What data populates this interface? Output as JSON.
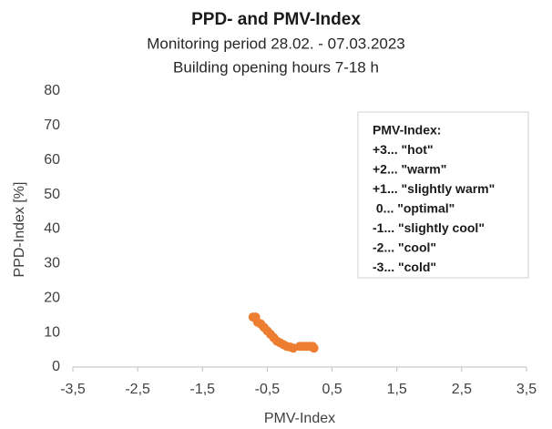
{
  "chart_data": {
    "type": "scatter",
    "title": "PPD- and PMV-Index",
    "subtitle": [
      "Monitoring period 28.02. - 07.03.2023",
      "Building opening hours 7-18 h"
    ],
    "x_label": "PMV-Index",
    "y_label": "PPD-Index [%]",
    "series": [
      {
        "name": "PPD",
        "color": "#ed7d31",
        "x": [
          -0.72,
          -0.68,
          -0.65,
          -0.6,
          -0.55,
          -0.5,
          -0.45,
          -0.4,
          -0.35,
          -0.3,
          -0.25,
          -0.2,
          -0.15,
          -0.1,
          0,
          0.05,
          0.1,
          0.15,
          0.2,
          0.22
        ],
        "values": [
          14.5,
          14.5,
          13,
          12.5,
          11.5,
          10.5,
          9.5,
          8.5,
          7.5,
          7,
          6.5,
          6,
          5.8,
          5.5,
          6,
          6,
          6,
          6,
          6,
          5.5
        ]
      }
    ],
    "xlim": [
      -3.5,
      3.5
    ],
    "xticks": [
      {
        "value": -3.5,
        "label": "-3,5"
      },
      {
        "value": -2.5,
        "label": "-2,5"
      },
      {
        "value": -1.5,
        "label": "-1,5"
      },
      {
        "value": -0.5,
        "label": "-0,5"
      },
      {
        "value": 0.5,
        "label": "0,5"
      },
      {
        "value": 1.5,
        "label": "1,5"
      },
      {
        "value": 2.5,
        "label": "2,5"
      },
      {
        "value": 3.5,
        "label": "3,5"
      }
    ],
    "ylim": [
      0,
      80
    ],
    "yticks": [
      0,
      10,
      20,
      30,
      40,
      50,
      60,
      70,
      80
    ],
    "grid": false,
    "annotation": {
      "lines": [
        "PMV-Index:",
        "+3... \"hot\"",
        "+2... \"warm\"",
        "+1... \"slightly warm\"",
        " 0... \"optimal\"",
        "-1... \"slightly cool\"",
        "-2... \"cool\"",
        "-3... \"cold\""
      ]
    }
  }
}
